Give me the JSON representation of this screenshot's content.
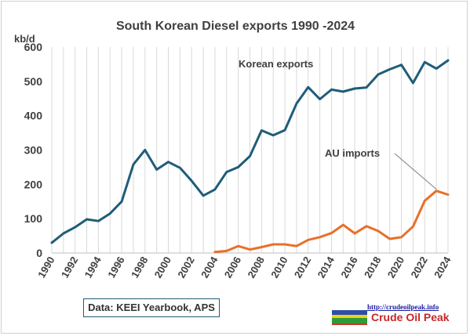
{
  "chart_data": {
    "type": "line",
    "title": "South Korean Diesel exports 1990 -2024",
    "ylabel": "kb/d",
    "xlabel": "",
    "ylim": [
      0,
      600
    ],
    "xlim": [
      1990,
      2024
    ],
    "yticks": [
      "0",
      "100",
      "200",
      "300",
      "400",
      "500",
      "600"
    ],
    "xticks": [
      "1990",
      "1992",
      "1994",
      "1996",
      "1998",
      "2000",
      "2002",
      "2004",
      "2006",
      "2008",
      "2010",
      "2012",
      "2014",
      "2016",
      "2018",
      "2020",
      "2022",
      "2024"
    ],
    "grid": {
      "vertical": true,
      "horizontal": false
    },
    "series": [
      {
        "name": "Korean exports",
        "color": "#1f5d78",
        "x": [
          1990,
          1991,
          1992,
          1993,
          1994,
          1995,
          1996,
          1997,
          1998,
          1999,
          2000,
          2001,
          2002,
          2003,
          2004,
          2005,
          2006,
          2007,
          2008,
          2009,
          2010,
          2011,
          2012,
          2013,
          2014,
          2015,
          2016,
          2017,
          2018,
          2019,
          2020,
          2021,
          2022,
          2023,
          2024
        ],
        "values": [
          30,
          57,
          75,
          98,
          93,
          115,
          150,
          258,
          300,
          243,
          265,
          248,
          210,
          167,
          185,
          236,
          250,
          282,
          357,
          343,
          358,
          435,
          483,
          448,
          476,
          470,
          479,
          482,
          520,
          535,
          548,
          495,
          556,
          537,
          561
        ]
      },
      {
        "name": "AU imports",
        "color": "#e8702a",
        "x": [
          2004,
          2005,
          2006,
          2007,
          2008,
          2009,
          2010,
          2011,
          2012,
          2013,
          2014,
          2015,
          2016,
          2017,
          2018,
          2019,
          2020,
          2021,
          2022,
          2023,
          2024
        ],
        "values": [
          3,
          6,
          20,
          10,
          17,
          25,
          25,
          20,
          38,
          46,
          58,
          82,
          57,
          78,
          64,
          41,
          46,
          77,
          152,
          181,
          170
        ]
      }
    ],
    "annotations": [
      {
        "text": "Korean exports",
        "series": "Korean exports"
      },
      {
        "text": "AU imports",
        "series": "AU imports",
        "pointer_to_x": 2023
      }
    ]
  },
  "source_note": "Data: KEEI Yearbook, APS",
  "brand": {
    "url": "http://crudeoilpeak.info",
    "name": "Crude Oil Peak"
  }
}
